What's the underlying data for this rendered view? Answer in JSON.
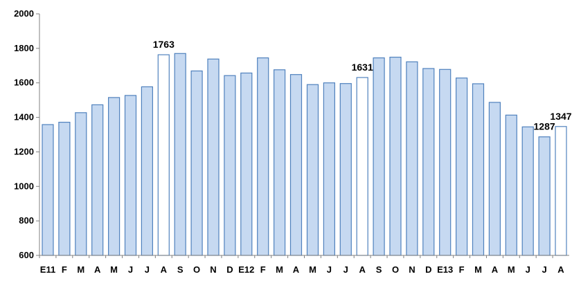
{
  "chart_data": {
    "type": "bar",
    "title": "",
    "xlabel": "",
    "ylabel": "",
    "ylim": [
      600,
      2000
    ],
    "yticks": [
      600,
      800,
      1000,
      1200,
      1400,
      1600,
      1800,
      2000
    ],
    "grid": false,
    "categories": [
      "E11",
      "F",
      "M",
      "A",
      "M",
      "J",
      "J",
      "A",
      "S",
      "O",
      "N",
      "D",
      "E12",
      "F",
      "M",
      "A",
      "M",
      "J",
      "J",
      "A",
      "S",
      "O",
      "N",
      "D",
      "E13",
      "F",
      "M",
      "A",
      "M",
      "J",
      "J",
      "A"
    ],
    "values": [
      1358,
      1372,
      1427,
      1473,
      1515,
      1527,
      1577,
      1763,
      1770,
      1669,
      1738,
      1642,
      1657,
      1745,
      1676,
      1648,
      1590,
      1600,
      1596,
      1631,
      1745,
      1749,
      1722,
      1683,
      1678,
      1628,
      1595,
      1487,
      1413,
      1345,
      1287,
      1347
    ],
    "highlighted_indices": [
      7,
      19,
      31
    ],
    "data_labels": [
      {
        "index": 7,
        "text": "1763"
      },
      {
        "index": 19,
        "text": "1631"
      },
      {
        "index": 30,
        "text": "1287"
      },
      {
        "index": 31,
        "text": "1347"
      }
    ],
    "colors": {
      "bar_fill": "#c6d9f1",
      "bar_stroke": "#4f81bd",
      "highlight_fill": "#ffffff",
      "axis": "#808080"
    }
  }
}
